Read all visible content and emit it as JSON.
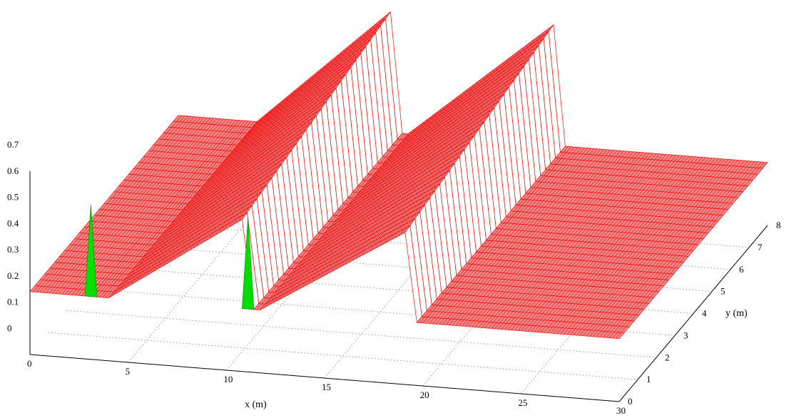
{
  "chart_data": {
    "type": "surface",
    "xlabel": "x (m)",
    "ylabel": "y (m)",
    "zlabel": "",
    "xlim": [
      0,
      30
    ],
    "ylim": [
      0,
      8
    ],
    "zlim": [
      0,
      0.7
    ],
    "x_ticks": [
      "0",
      "5",
      "10",
      "15",
      "20",
      "25",
      "30"
    ],
    "y_ticks": [
      "0",
      "1",
      "2",
      "3",
      "4",
      "5",
      "6",
      "7",
      "8"
    ],
    "z_ticks": [
      "0",
      "0.1",
      "0.2",
      "0.3",
      "0.4",
      "0.5",
      "0.6",
      "0.7"
    ],
    "grid": true,
    "base_level": 0.24,
    "profile_x": [
      0,
      3.1,
      3.7,
      4.0,
      10.8,
      11.4,
      11.7,
      19.1,
      19.7,
      20.0,
      30
    ],
    "ridges": [
      {
        "x_start": 3.7,
        "x_peak": 10.8,
        "x_end": 11.4,
        "peak_y0": 0.58,
        "peak_y8": 0.7
      },
      {
        "x_start": 11.7,
        "x_peak": 19.1,
        "x_end": 19.7,
        "peak_y0": 0.58,
        "peak_y8": 0.7
      }
    ],
    "colors": {
      "surface": "#ff0000",
      "surface_fill": "#f08a8a",
      "underside": "#00dd00",
      "grid": "#999999",
      "axis": "#000000"
    }
  }
}
